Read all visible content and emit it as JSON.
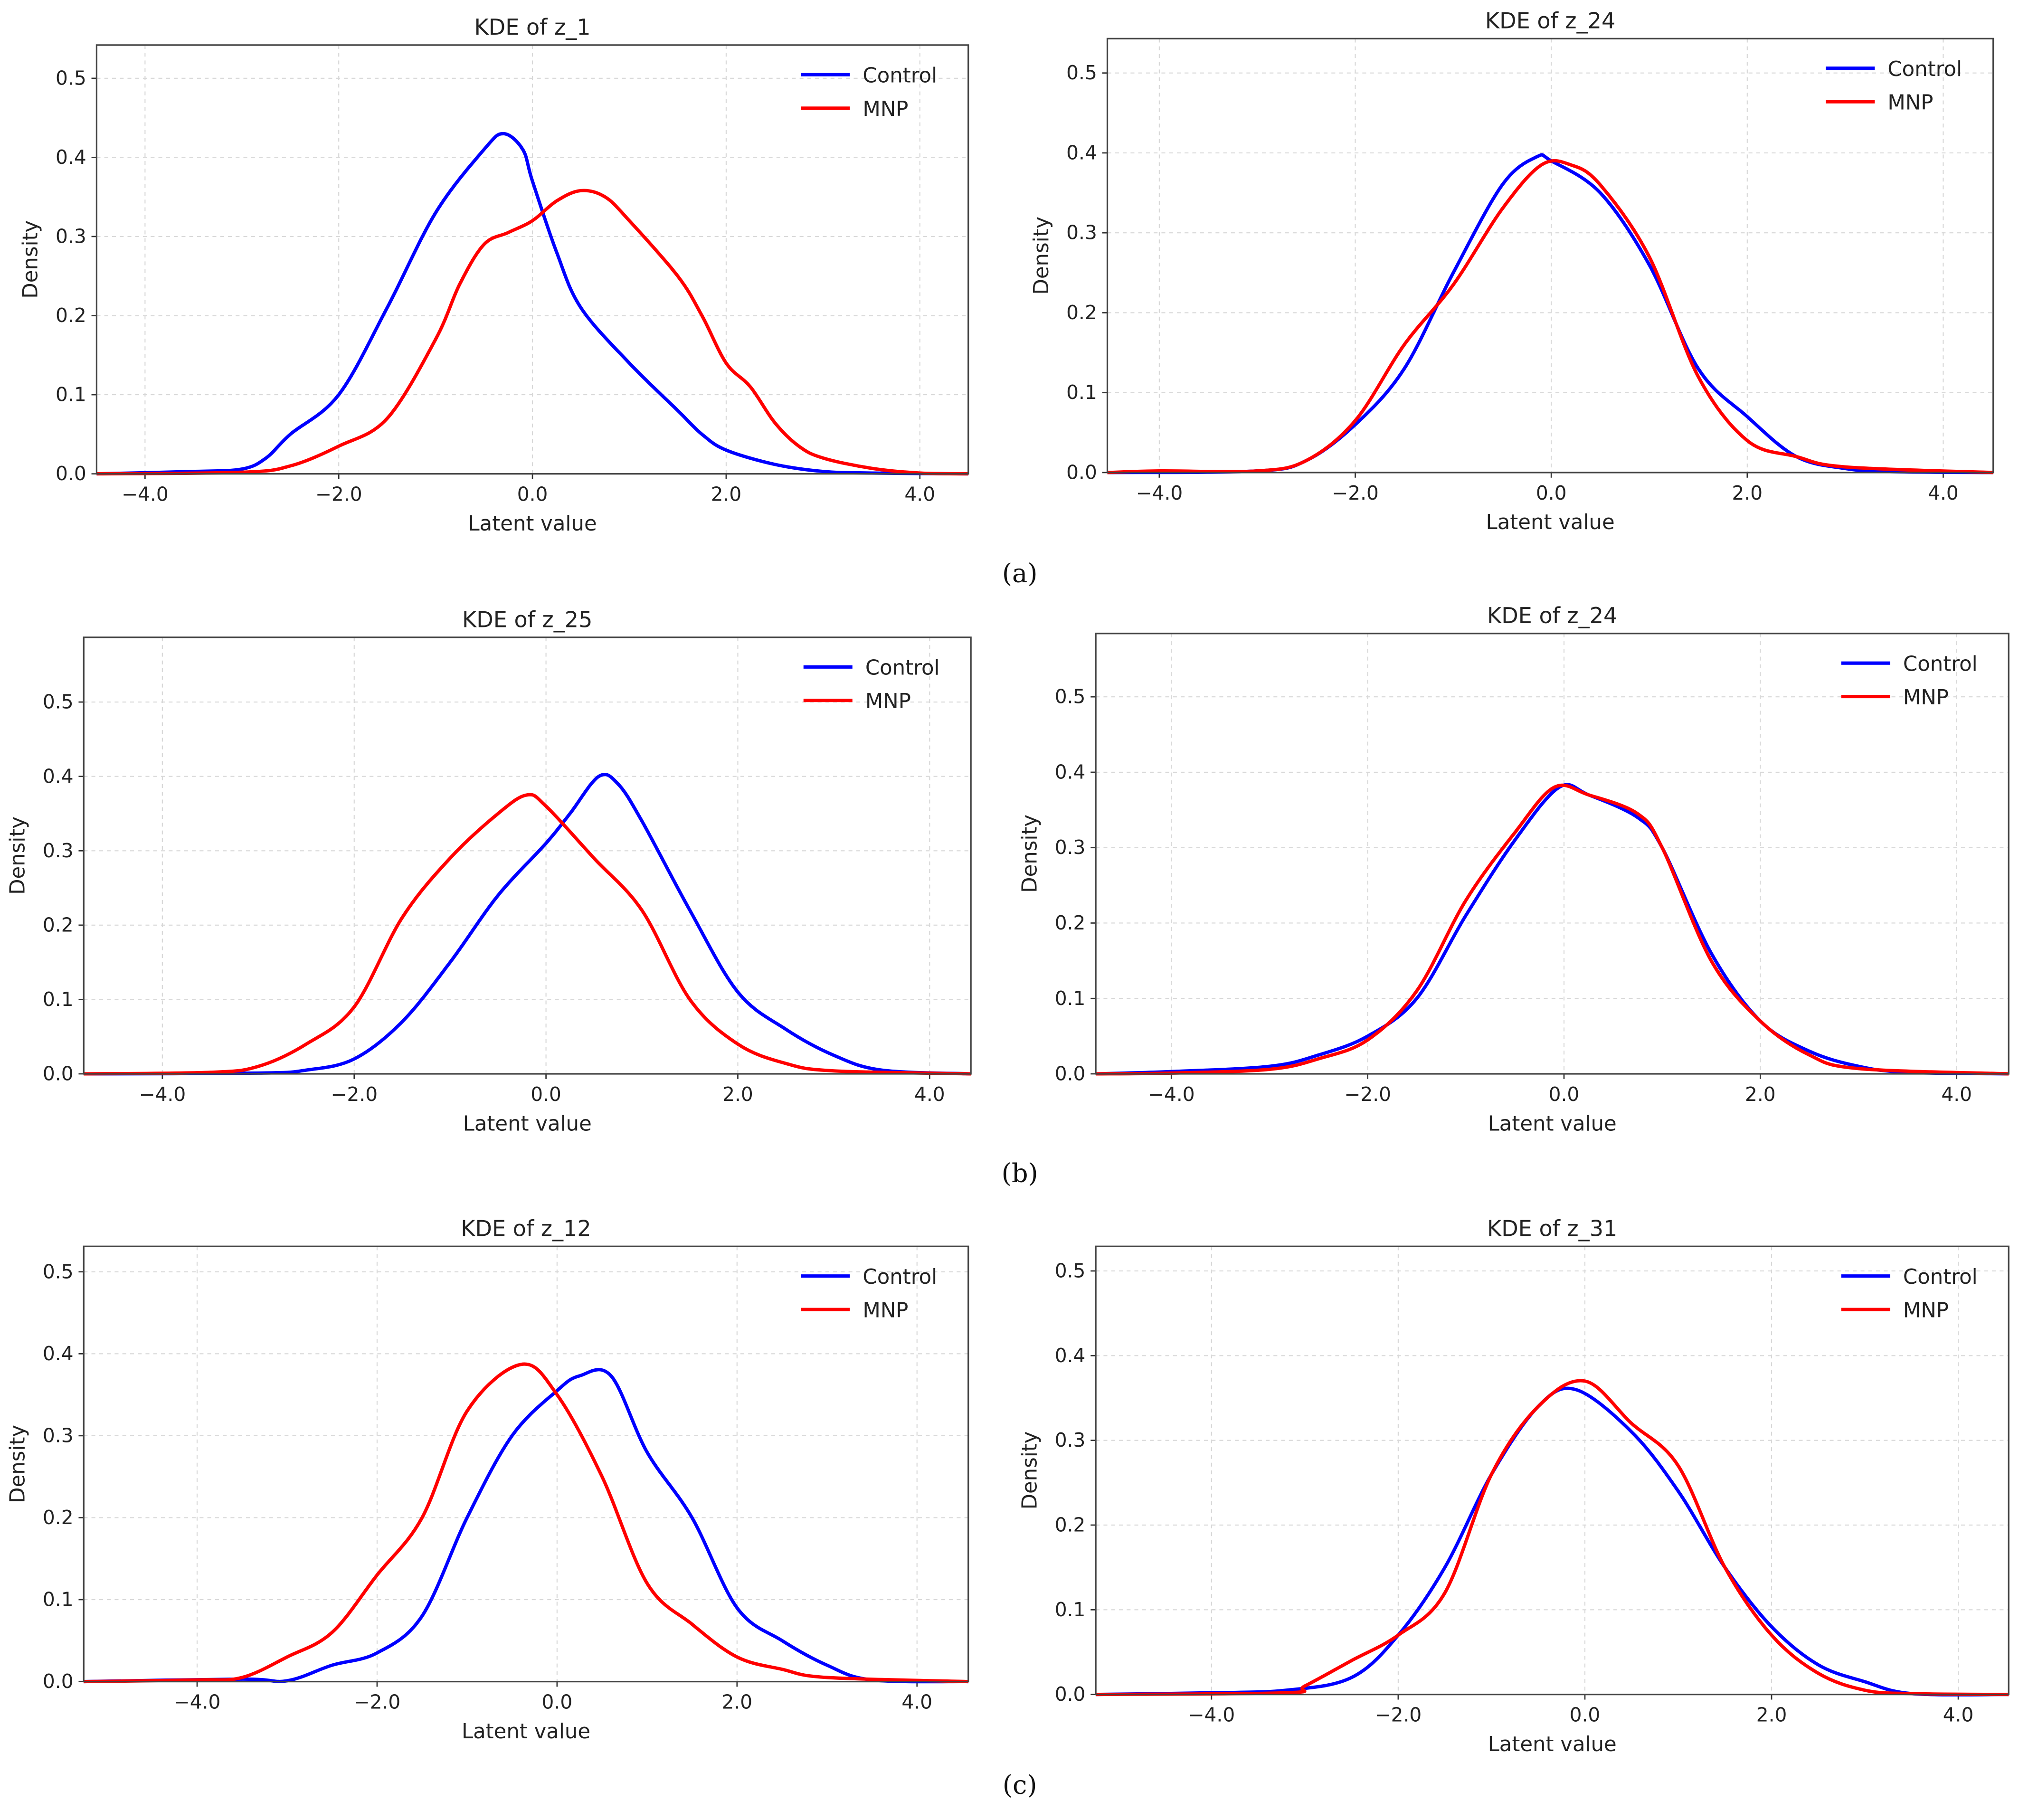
{
  "chart_data": [
    {
      "type": "line",
      "panel": "a",
      "title": "KDE of z_1",
      "xlabel": "Latent value",
      "ylabel": "Density",
      "xlim": [
        -4.5,
        4.5
      ],
      "ylim": [
        0,
        0.542
      ],
      "xticks": [
        -4,
        -2,
        0,
        2,
        4
      ],
      "xtick_labels": [
        "−4.0",
        "−2.0",
        "0.0",
        "2.0",
        "4.0"
      ],
      "yticks": [
        0,
        0.1,
        0.2,
        0.3,
        0.4,
        0.5
      ],
      "ytick_labels": [
        "0.0",
        "0.1",
        "0.2",
        "0.3",
        "0.4",
        "0.5"
      ],
      "grid": true,
      "legend": "top-right",
      "series": [
        {
          "name": "Control",
          "color": "#0000ff",
          "x": [
            -4.5,
            -3.5,
            -3,
            -2.75,
            -2.5,
            -2,
            -1.5,
            -1,
            -0.5,
            -0.3,
            -0.1,
            0,
            0.25,
            0.5,
            1,
            1.5,
            1.75,
            2,
            2.5,
            3,
            3.5,
            4.5
          ],
          "y": [
            0,
            0.003,
            0.006,
            0.02,
            0.05,
            0.1,
            0.21,
            0.33,
            0.41,
            0.43,
            0.41,
            0.37,
            0.28,
            0.21,
            0.14,
            0.08,
            0.05,
            0.03,
            0.012,
            0.003,
            0.001,
            0
          ]
        },
        {
          "name": "MNP",
          "color": "#ff0000",
          "x": [
            -4.5,
            -3,
            -2.5,
            -2,
            -1.5,
            -1,
            -0.75,
            -0.5,
            -0.25,
            0,
            0.25,
            0.5,
            0.75,
            1,
            1.5,
            1.75,
            2,
            2.25,
            2.5,
            2.75,
            3,
            3.5,
            4,
            4.5
          ],
          "y": [
            0,
            0.002,
            0.01,
            0.035,
            0.07,
            0.17,
            0.24,
            0.29,
            0.305,
            0.32,
            0.345,
            0.358,
            0.35,
            0.32,
            0.25,
            0.2,
            0.14,
            0.11,
            0.065,
            0.035,
            0.02,
            0.007,
            0.001,
            0
          ]
        }
      ]
    },
    {
      "type": "line",
      "panel": "a",
      "title": "KDE of z_24",
      "xlabel": "Latent value",
      "ylabel": "Density",
      "xlim": [
        -4.53,
        4.51
      ],
      "ylim": [
        0,
        0.543
      ],
      "xticks": [
        -4,
        -2,
        0,
        2,
        4
      ],
      "xtick_labels": [
        "−4.0",
        "−2.0",
        "0.0",
        "2.0",
        "4.0"
      ],
      "yticks": [
        0,
        0.1,
        0.2,
        0.3,
        0.4,
        0.5
      ],
      "ytick_labels": [
        "0.0",
        "0.1",
        "0.2",
        "0.3",
        "0.4",
        "0.5"
      ],
      "grid": true,
      "legend": "top-right",
      "series": [
        {
          "name": "Control",
          "color": "#0000ff",
          "x": [
            -4.53,
            -3,
            -2.5,
            -2,
            -1.5,
            -1,
            -0.5,
            -0.15,
            0,
            0.5,
            1,
            1.5,
            2,
            2.5,
            3,
            3.5,
            4.51
          ],
          "y": [
            0,
            0.002,
            0.015,
            0.06,
            0.13,
            0.25,
            0.36,
            0.395,
            0.39,
            0.35,
            0.26,
            0.13,
            0.07,
            0.02,
            0.005,
            0.001,
            0
          ]
        },
        {
          "name": "MNP",
          "color": "#ff0000",
          "x": [
            -4.53,
            -4,
            -3,
            -2.5,
            -2,
            -1.5,
            -1,
            -0.5,
            -0.1,
            0.2,
            0.5,
            1,
            1.5,
            2,
            2.5,
            3,
            4.51
          ],
          "y": [
            0,
            0.002,
            0.002,
            0.015,
            0.065,
            0.16,
            0.235,
            0.33,
            0.385,
            0.385,
            0.36,
            0.27,
            0.12,
            0.04,
            0.02,
            0.007,
            0
          ]
        }
      ]
    },
    {
      "type": "line",
      "panel": "b",
      "title": "KDE of z_25",
      "xlabel": "Latent value",
      "ylabel": "Density",
      "xlim": [
        -4.82,
        4.43
      ],
      "ylim": [
        0,
        0.587
      ],
      "xticks": [
        -4,
        -2,
        0,
        2,
        4
      ],
      "xtick_labels": [
        "−4.0",
        "−2.0",
        "0.0",
        "2.0",
        "4.0"
      ],
      "yticks": [
        0,
        0.1,
        0.2,
        0.3,
        0.4,
        0.5
      ],
      "ytick_labels": [
        "0.0",
        "0.1",
        "0.2",
        "0.3",
        "0.4",
        "0.5"
      ],
      "grid": true,
      "legend": "top-right",
      "series": [
        {
          "name": "Control",
          "color": "#0000ff",
          "x": [
            -4.82,
            -3,
            -2.5,
            -2,
            -1.5,
            -1,
            -0.5,
            0,
            0.25,
            0.55,
            0.75,
            1,
            1.5,
            2,
            2.5,
            3,
            3.5,
            4.43
          ],
          "y": [
            0,
            0.001,
            0.005,
            0.02,
            0.07,
            0.15,
            0.24,
            0.31,
            0.35,
            0.4,
            0.39,
            0.34,
            0.22,
            0.11,
            0.06,
            0.025,
            0.005,
            0
          ]
        },
        {
          "name": "MNP",
          "color": "#ff0000",
          "x": [
            -4.82,
            -3.5,
            -3,
            -2.5,
            -2,
            -1.5,
            -1,
            -0.5,
            -0.2,
            0,
            0.5,
            1,
            1.5,
            2,
            2.5,
            3,
            4.43
          ],
          "y": [
            0,
            0.002,
            0.01,
            0.04,
            0.09,
            0.21,
            0.29,
            0.35,
            0.375,
            0.36,
            0.29,
            0.22,
            0.1,
            0.04,
            0.014,
            0.004,
            0
          ]
        }
      ]
    },
    {
      "type": "line",
      "panel": "b",
      "title": "KDE of z_24",
      "xlabel": "Latent value",
      "ylabel": "Density",
      "xlim": [
        -4.77,
        4.53
      ],
      "ylim": [
        0,
        0.584
      ],
      "xticks": [
        -4,
        -2,
        0,
        2,
        4
      ],
      "xtick_labels": [
        "−4.0",
        "−2.0",
        "0.0",
        "2.0",
        "4.0"
      ],
      "yticks": [
        0,
        0.1,
        0.2,
        0.3,
        0.4,
        0.5
      ],
      "ytick_labels": [
        "0.0",
        "0.1",
        "0.2",
        "0.3",
        "0.4",
        "0.5"
      ],
      "grid": true,
      "legend": "top-right",
      "series": [
        {
          "name": "Control",
          "color": "#0000ff",
          "x": [
            -4.77,
            -4,
            -3,
            -2.5,
            -2,
            -1.5,
            -1,
            -0.5,
            -0.05,
            0.25,
            0.75,
            1,
            1.5,
            2,
            2.5,
            3,
            3.5,
            4.53
          ],
          "y": [
            0,
            0.003,
            0.01,
            0.025,
            0.05,
            0.1,
            0.21,
            0.31,
            0.38,
            0.37,
            0.34,
            0.3,
            0.16,
            0.07,
            0.03,
            0.01,
            0.002,
            0
          ]
        },
        {
          "name": "MNP",
          "color": "#ff0000",
          "x": [
            -4.77,
            -4,
            -3,
            -2.5,
            -2,
            -1.5,
            -1,
            -0.5,
            -0.1,
            0.25,
            0.75,
            1,
            1.5,
            2,
            2.5,
            3,
            4.53
          ],
          "y": [
            0,
            0.001,
            0.006,
            0.02,
            0.045,
            0.11,
            0.23,
            0.32,
            0.38,
            0.37,
            0.345,
            0.3,
            0.15,
            0.07,
            0.025,
            0.007,
            0
          ]
        }
      ]
    },
    {
      "type": "line",
      "panel": "c",
      "title": "KDE of z_12",
      "xlabel": "Latent value",
      "ylabel": "Density",
      "xlim": [
        -5.26,
        4.57
      ],
      "ylim": [
        0,
        0.531
      ],
      "xticks": [
        -4,
        -2,
        0,
        2,
        4
      ],
      "xtick_labels": [
        "−4.0",
        "−2.0",
        "0.0",
        "2.0",
        "4.0"
      ],
      "yticks": [
        0,
        0.1,
        0.2,
        0.3,
        0.4,
        0.5
      ],
      "ytick_labels": [
        "0.0",
        "0.1",
        "0.2",
        "0.3",
        "0.4",
        "0.5"
      ],
      "grid": true,
      "legend": "top-right",
      "series": [
        {
          "name": "Control",
          "color": "#0000ff",
          "x": [
            -5.26,
            -3.5,
            -3,
            -2.5,
            -2,
            -1.5,
            -1,
            -0.5,
            0,
            0.25,
            0.6,
            1,
            1.5,
            2,
            2.5,
            3,
            3.5,
            4.57
          ],
          "y": [
            0,
            0.003,
            0.001,
            0.02,
            0.035,
            0.08,
            0.2,
            0.3,
            0.355,
            0.373,
            0.373,
            0.28,
            0.2,
            0.09,
            0.05,
            0.02,
            0.002,
            0
          ]
        },
        {
          "name": "MNP",
          "color": "#ff0000",
          "x": [
            -5.26,
            -4,
            -3.5,
            -3,
            -2.5,
            -2,
            -1.5,
            -1,
            -0.4,
            0,
            0.5,
            1,
            1.5,
            2,
            2.5,
            3,
            4.57
          ],
          "y": [
            0,
            0.002,
            0.005,
            0.03,
            0.06,
            0.13,
            0.2,
            0.33,
            0.387,
            0.35,
            0.25,
            0.12,
            0.07,
            0.03,
            0.015,
            0.005,
            0
          ]
        }
      ]
    },
    {
      "type": "line",
      "panel": "c",
      "title": "KDE of z_31",
      "xlabel": "Latent value",
      "ylabel": "Density",
      "xlim": [
        -5.24,
        4.54
      ],
      "ylim": [
        0,
        0.529
      ],
      "xticks": [
        -4,
        -2,
        0,
        2,
        4
      ],
      "xtick_labels": [
        "−4.0",
        "−2.0",
        "0.0",
        "2.0",
        "4.0"
      ],
      "yticks": [
        0,
        0.1,
        0.2,
        0.3,
        0.4,
        0.5
      ],
      "ytick_labels": [
        "0.0",
        "0.1",
        "0.2",
        "0.3",
        "0.4",
        "0.5"
      ],
      "grid": true,
      "legend": "top-right",
      "series": [
        {
          "name": "Control",
          "color": "#0000ff",
          "x": [
            -5.24,
            -4,
            -3.2,
            -2.5,
            -2,
            -1.5,
            -1,
            -0.5,
            -0.1,
            0.5,
            1,
            1.5,
            2,
            2.5,
            3,
            3.5,
            4.54
          ],
          "y": [
            0,
            0.002,
            0.005,
            0.02,
            0.07,
            0.15,
            0.26,
            0.34,
            0.36,
            0.31,
            0.24,
            0.15,
            0.08,
            0.035,
            0.015,
            0.001,
            0
          ]
        },
        {
          "name": "MNP",
          "color": "#ff0000",
          "x": [
            -5.24,
            -3.2,
            -3,
            -2.5,
            -2,
            -1.5,
            -1,
            -0.5,
            0,
            0.5,
            1,
            1.5,
            2,
            2.5,
            3,
            3.5,
            4.54
          ],
          "y": [
            0,
            0.002,
            0.01,
            0.04,
            0.07,
            0.12,
            0.26,
            0.34,
            0.37,
            0.32,
            0.27,
            0.15,
            0.07,
            0.025,
            0.005,
            0.001,
            0
          ]
        }
      ]
    }
  ],
  "captions": [
    "(a)",
    "(b)",
    "(c)"
  ]
}
